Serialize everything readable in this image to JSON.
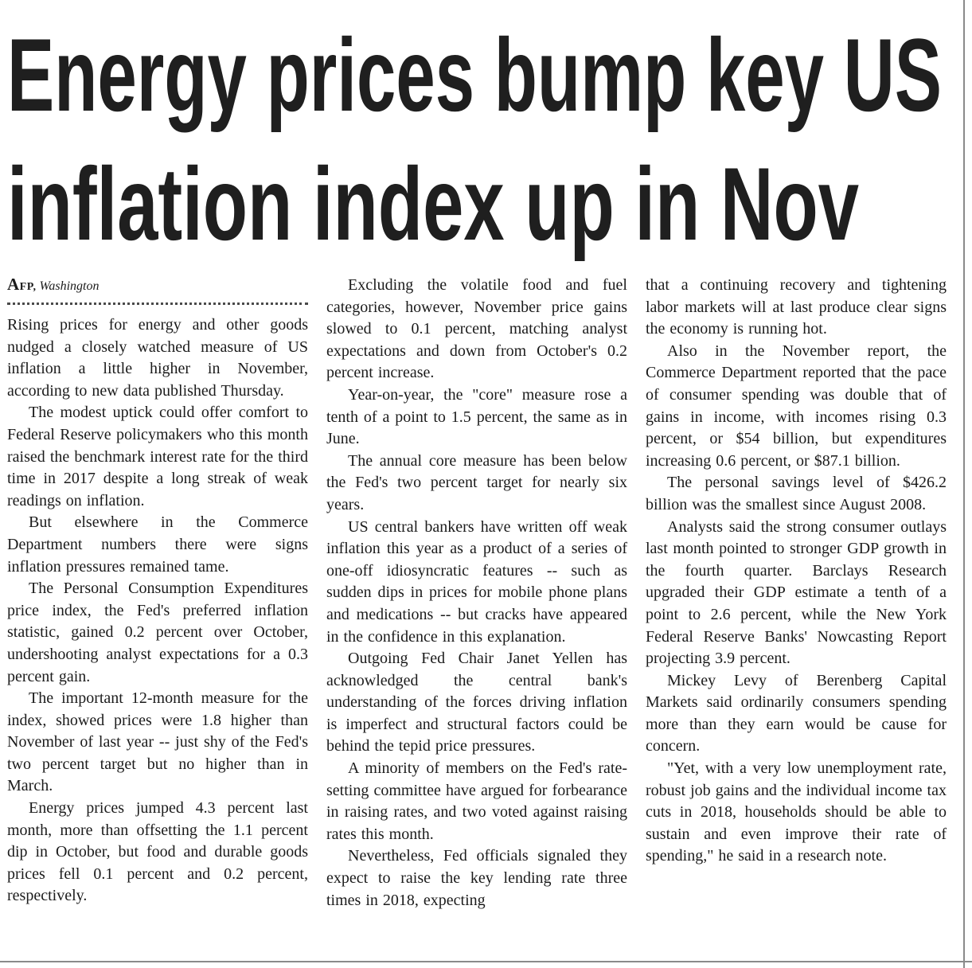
{
  "colors": {
    "paper": "#ffffff",
    "text": "#1b1b1b",
    "headline": "#1f1f1f",
    "rule": "#4a4a4a",
    "frame_line": "#8a8a8a"
  },
  "article": {
    "headline_lines": [
      "Energy prices bump key US",
      "inflation index up in Nov"
    ],
    "byline": {
      "agency": "AFP,",
      "location": "Washington"
    },
    "columns": [
      {
        "paragraphs": [
          "Rising prices for energy and other goods nudged a closely watched measure of US inflation a little higher in November, according to new data published Thursday.",
          "The modest uptick could offer comfort to Federal Reserve policymakers who this month raised the benchmark interest rate for the third time in 2017 despite a long streak of weak readings on inflation.",
          "But elsewhere in the Commerce Department numbers there were signs inflation pressures remained tame.",
          "The Personal Consumption Expenditures price index, the Fed's preferred inflation statistic, gained 0.2 percent over October, undershooting analyst expectations for a 0.3 percent gain.",
          "The important 12-month measure for the index, showed prices were 1.8 higher than November of last year -- just shy of the Fed's two percent target but no higher than in March.",
          "Energy prices jumped 4.3 percent last month, more than offsetting the 1.1 percent dip in October, but food and durable goods prices fell 0.1 percent and 0.2 percent, respectively."
        ]
      },
      {
        "paragraphs": [
          "Excluding the volatile food and fuel categories, however, November price gains slowed to 0.1 percent, matching analyst expectations and down from October's 0.2 percent increase.",
          "Year-on-year, the \"core\" measure rose a tenth of a point to 1.5 percent, the same as in June.",
          "The annual core measure has been below the Fed's two percent target for nearly six years.",
          "US central bankers have written off weak inflation this year as a product of a series of one-off idiosyncratic features -- such as sudden dips in prices for mobile phone plans and medications -- but cracks have appeared in the confidence in this explanation.",
          "Outgoing Fed Chair Janet Yellen has acknowledged the central bank's understanding of the forces driving inflation is imperfect and structural factors could be behind the tepid price pressures.",
          "A minority of members on the Fed's rate-setting committee have argued for forbearance in raising rates, and two voted against raising rates this month.",
          "Nevertheless, Fed officials signaled they expect to raise the key lending rate three times in 2018, expecting"
        ]
      },
      {
        "paragraphs": [
          "that a continuing recovery and tightening labor markets will at last produce clear signs the economy is running hot.",
          "Also in the November report, the Commerce Department reported that the pace of consumer spending was double that of gains in income, with incomes rising 0.3 percent, or $54 billion, but expenditures increasing 0.6 percent, or $87.1 billion.",
          "The personal savings level of $426.2 billion was the smallest since August 2008.",
          "Analysts said the strong consumer outlays last month pointed to stronger GDP growth in the fourth quarter. Barclays Research upgraded their GDP estimate a tenth of a point to 2.6 percent, while the New York Federal Reserve Banks' Nowcasting Report projecting 3.9 percent.",
          "Mickey Levy of Berenberg Capital Markets said ordinarily consumers spending more than they earn would be cause for concern.",
          "\"Yet, with a very low unemployment rate, robust job gains and the individual income tax cuts in 2018, households should be able to sustain and even improve their rate of spending,\" he said in a research note."
        ]
      }
    ]
  }
}
